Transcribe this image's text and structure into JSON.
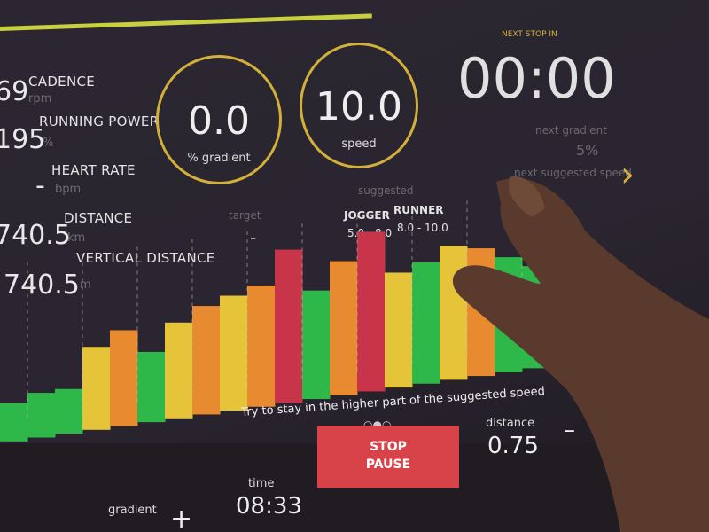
{
  "metrics": [
    {
      "value": "69",
      "label": "CADENCE",
      "unit": "rpm"
    },
    {
      "value": "195",
      "label": "RUNNING POWER",
      "unit": "%"
    },
    {
      "value": "-",
      "label": "HEART RATE",
      "unit": "bpm"
    },
    {
      "value": "740.5",
      "label": "DISTANCE",
      "unit": "km"
    },
    {
      "value": "740.5",
      "label": "VERTICAL DISTANCE",
      "unit": "m"
    }
  ],
  "gauges": [
    {
      "value": "0.0",
      "label": "% gradient"
    },
    {
      "value": "10.0",
      "label": "speed"
    }
  ],
  "next_stop": {
    "label": "NEXT STOP IN",
    "time": "00:00",
    "next_gradient_label": "next gradient",
    "next_gradient": "5%",
    "next_speed_label": "next suggested speed"
  },
  "target": {
    "label": "target",
    "value": "-"
  },
  "suggested": {
    "label": "suggested",
    "profiles": [
      {
        "name": "JOGGER",
        "range": "5.0 - 8.0"
      },
      {
        "name": "RUNNER",
        "range": "8.0 - 10.0"
      }
    ]
  },
  "profile": {
    "values": [
      3,
      3.5,
      3.5,
      6.5,
      7.5,
      5.5,
      7.5,
      8.5,
      9,
      9.5,
      12,
      8.5,
      10.5,
      12.5,
      9,
      9.5,
      10.5,
      10,
      9,
      8
    ],
    "colors": [
      "#2fb84a",
      "#2fb84a",
      "#2fb84a",
      "#e6c43a",
      "#e88a30",
      "#2fb84a",
      "#e6c43a",
      "#e88a30",
      "#e6c43a",
      "#e88a30",
      "#c8354a",
      "#2fb84a",
      "#e88a30",
      "#c8354a",
      "#e6c43a",
      "#2fb84a",
      "#e6c43a",
      "#e88a30",
      "#2fb84a",
      "#2fb84a"
    ]
  },
  "hint": "Try to stay in the higher part of the suggested speed",
  "controls": {
    "stop": "STOP",
    "pause": "PAUSE",
    "time_label": "time",
    "time": "08:33",
    "distance_label": "distance",
    "distance": "0.75",
    "gradient_label": "gradient"
  }
}
